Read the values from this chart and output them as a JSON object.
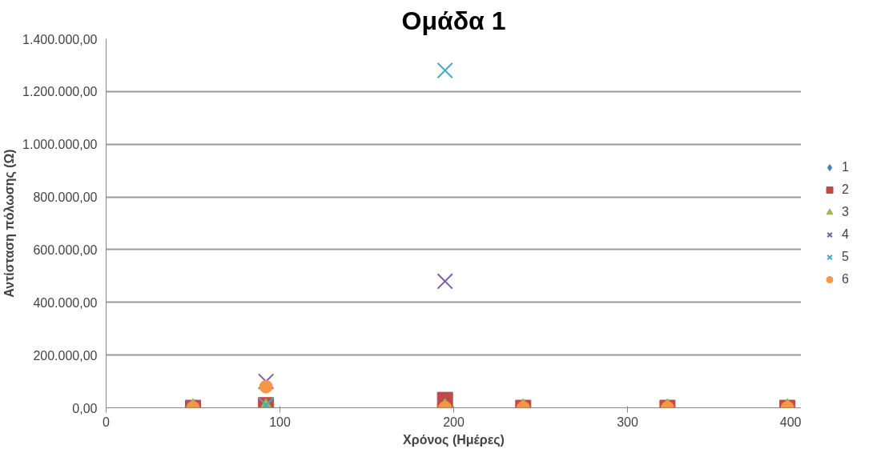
{
  "chart_data": {
    "type": "scatter",
    "title": "Ομάδα 1",
    "xlabel": "Χρόνος (Ημέρες)",
    "ylabel": "Αντίσταση πόλωσης (Ω)",
    "x": [
      50,
      92,
      195,
      240,
      323,
      392
    ],
    "series": [
      {
        "name": "1",
        "color": "#4a7ebb",
        "marker": "diamond",
        "values": [
          null,
          null,
          null,
          null,
          null,
          null
        ]
      },
      {
        "name": "2",
        "color": "#be4b48",
        "marker": "square",
        "values": [
          0,
          10000,
          30000,
          0,
          0,
          0
        ]
      },
      {
        "name": "3",
        "color": "#98b954",
        "marker": "triangle",
        "values": [
          0,
          0,
          0,
          0,
          0,
          0
        ]
      },
      {
        "name": "4",
        "color": "#7d60a0",
        "marker": "cross",
        "values": [
          0,
          100000,
          480000,
          null,
          null,
          null
        ]
      },
      {
        "name": "5",
        "color": "#46aac5",
        "marker": "cross",
        "values": [
          null,
          10000,
          1280000,
          null,
          null,
          null
        ]
      },
      {
        "name": "6",
        "color": "#f79646",
        "marker": "circle",
        "values": [
          0,
          80000,
          0,
          0,
          0,
          0
        ]
      }
    ],
    "xlim": [
      0,
      400
    ],
    "xticks": [
      0,
      100,
      200,
      300,
      400
    ],
    "ylim": [
      0,
      1400000
    ],
    "yticks": [
      {
        "value": 0,
        "label": "0,00"
      },
      {
        "value": 200000,
        "label": "200.000,00"
      },
      {
        "value": 400000,
        "label": "400.000,00"
      },
      {
        "value": 600000,
        "label": "600.000,00"
      },
      {
        "value": 800000,
        "label": "800.000,00"
      },
      {
        "value": 1000000,
        "label": "1.000.000,00"
      },
      {
        "value": 1200000,
        "label": "1.200.000,00"
      },
      {
        "value": 1400000,
        "label": "1.400.000,00"
      }
    ],
    "grid": "y",
    "legend": "right"
  }
}
